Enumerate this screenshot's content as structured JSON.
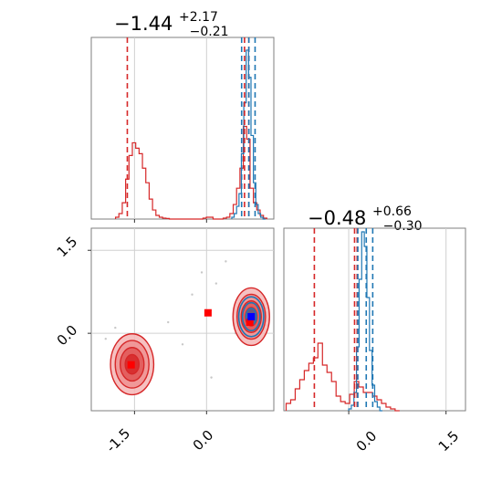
{
  "chart_data": [
    {
      "type": "histogram",
      "panel": "top-left",
      "title": {
        "value": "−1.44",
        "plus": "+2.17",
        "minus": "−0.21"
      },
      "xlim": [
        -2.4,
        1.4
      ],
      "ylim": [
        0,
        1
      ],
      "grid": true,
      "lines": {
        "red": [
          -1.65,
          0.79,
          0.88
        ],
        "blue": [
          0.73,
          0.88,
          1.01
        ]
      },
      "series": [
        {
          "color": "#d62728",
          "x": [
            -1.86,
            -1.79,
            -1.72,
            -1.65,
            -1.58,
            -1.51,
            -1.44,
            -1.37,
            -1.3,
            -1.23,
            -1.16,
            -1.09,
            -1.02,
            -0.95,
            -0.88,
            -0.81,
            -0.74,
            -0.67,
            -0.6,
            -0.53,
            -0.46,
            -0.39,
            -0.32,
            -0.25,
            -0.18,
            -0.11,
            -0.04,
            0.03,
            0.1,
            0.17,
            0.24,
            0.31,
            0.38,
            0.45,
            0.52,
            0.59,
            0.66,
            0.73,
            0.8,
            0.87,
            0.94,
            1.01,
            1.08,
            1.15,
            1.22
          ],
          "values": [
            0.01,
            0.03,
            0.09,
            0.22,
            0.35,
            0.42,
            0.39,
            0.36,
            0.28,
            0.2,
            0.11,
            0.05,
            0.02,
            0.01,
            0.005,
            0.003,
            0.0,
            0.0,
            0.0,
            0.0,
            0.0,
            0.0,
            0.0,
            0.0,
            0.0,
            0.0,
            0.005,
            0.01,
            0.01,
            0.0,
            0.0,
            0.0,
            0.005,
            0.01,
            0.03,
            0.08,
            0.17,
            0.28,
            0.51,
            0.44,
            0.17,
            0.09,
            0.05,
            0.02,
            0.005
          ]
        },
        {
          "color": "#1f77b4",
          "x": [
            0.55,
            0.6,
            0.65,
            0.7,
            0.75,
            0.8,
            0.85,
            0.9,
            0.95,
            1.0,
            1.05,
            1.1,
            1.15,
            1.2
          ],
          "values": [
            0.01,
            0.03,
            0.07,
            0.14,
            0.36,
            0.64,
            0.93,
            0.78,
            0.46,
            0.2,
            0.08,
            0.03,
            0.01,
            0.0
          ]
        }
      ]
    },
    {
      "type": "histogram",
      "panel": "bottom-right",
      "title": {
        "value": "−0.48",
        "plus": "+0.66",
        "minus": "−0.30"
      },
      "xlim": [
        -1.0,
        1.8
      ],
      "ylim": [
        0,
        1
      ],
      "grid": true,
      "xticks": [
        "0.0",
        "1.5"
      ],
      "lines": {
        "red": [
          -0.53,
          0.09,
          0.13
        ],
        "blue": [
          0.14,
          0.27,
          0.37
        ]
      },
      "series": [
        {
          "color": "#d62728",
          "x": [
            -0.93,
            -0.86,
            -0.79,
            -0.72,
            -0.65,
            -0.58,
            -0.51,
            -0.44,
            -0.37,
            -0.3,
            -0.23,
            -0.16,
            -0.09,
            -0.02,
            0.05,
            0.12,
            0.19,
            0.26,
            0.33,
            0.4,
            0.47,
            0.54,
            0.61,
            0.68,
            0.75
          ],
          "values": [
            0.04,
            0.06,
            0.12,
            0.17,
            0.22,
            0.26,
            0.29,
            0.37,
            0.25,
            0.21,
            0.16,
            0.08,
            0.05,
            0.04,
            0.09,
            0.16,
            0.13,
            0.1,
            0.1,
            0.08,
            0.06,
            0.04,
            0.02,
            0.01,
            0.0
          ]
        },
        {
          "color": "#1f77b4",
          "x": [
            0.02,
            0.06,
            0.1,
            0.14,
            0.18,
            0.22,
            0.26,
            0.3,
            0.34,
            0.38,
            0.42,
            0.46,
            0.5
          ],
          "values": [
            0.01,
            0.03,
            0.1,
            0.35,
            0.72,
            0.98,
            0.9,
            0.62,
            0.33,
            0.14,
            0.05,
            0.02,
            0.0
          ]
        }
      ]
    },
    {
      "type": "contour",
      "panel": "bottom-left",
      "xlim": [
        -2.4,
        1.4
      ],
      "ylim": [
        -1.4,
        1.9
      ],
      "xticks": [
        "-1.5",
        "0.0"
      ],
      "yticks": [
        "0.0",
        "1.5"
      ],
      "grid": true,
      "red_blobs": [
        {
          "cx": -1.55,
          "cy": -0.56,
          "rx": 0.45,
          "ry": 0.55
        },
        {
          "cx": 0.93,
          "cy": 0.3,
          "rx": 0.38,
          "ry": 0.52
        }
      ],
      "blue_blobs": [
        {
          "cx": 0.93,
          "cy": 0.3,
          "rx": 0.26,
          "ry": 0.36
        }
      ],
      "markers": [
        {
          "color": "red",
          "x": -1.57,
          "y": -0.57
        },
        {
          "color": "red",
          "x": 0.03,
          "y": 0.37
        },
        {
          "color": "red",
          "x": 0.9,
          "y": 0.2
        },
        {
          "color": "blue",
          "x": 0.93,
          "y": 0.3
        }
      ],
      "outlier_points": [
        [
          -0.1,
          1.1
        ],
        [
          0.2,
          0.9
        ],
        [
          -0.3,
          0.7
        ],
        [
          0.4,
          1.3
        ],
        [
          -0.8,
          0.2
        ],
        [
          0.6,
          0.0
        ],
        [
          -1.9,
          0.1
        ],
        [
          -0.5,
          -0.2
        ],
        [
          0.1,
          -0.8
        ],
        [
          -2.1,
          -0.1
        ]
      ]
    }
  ]
}
